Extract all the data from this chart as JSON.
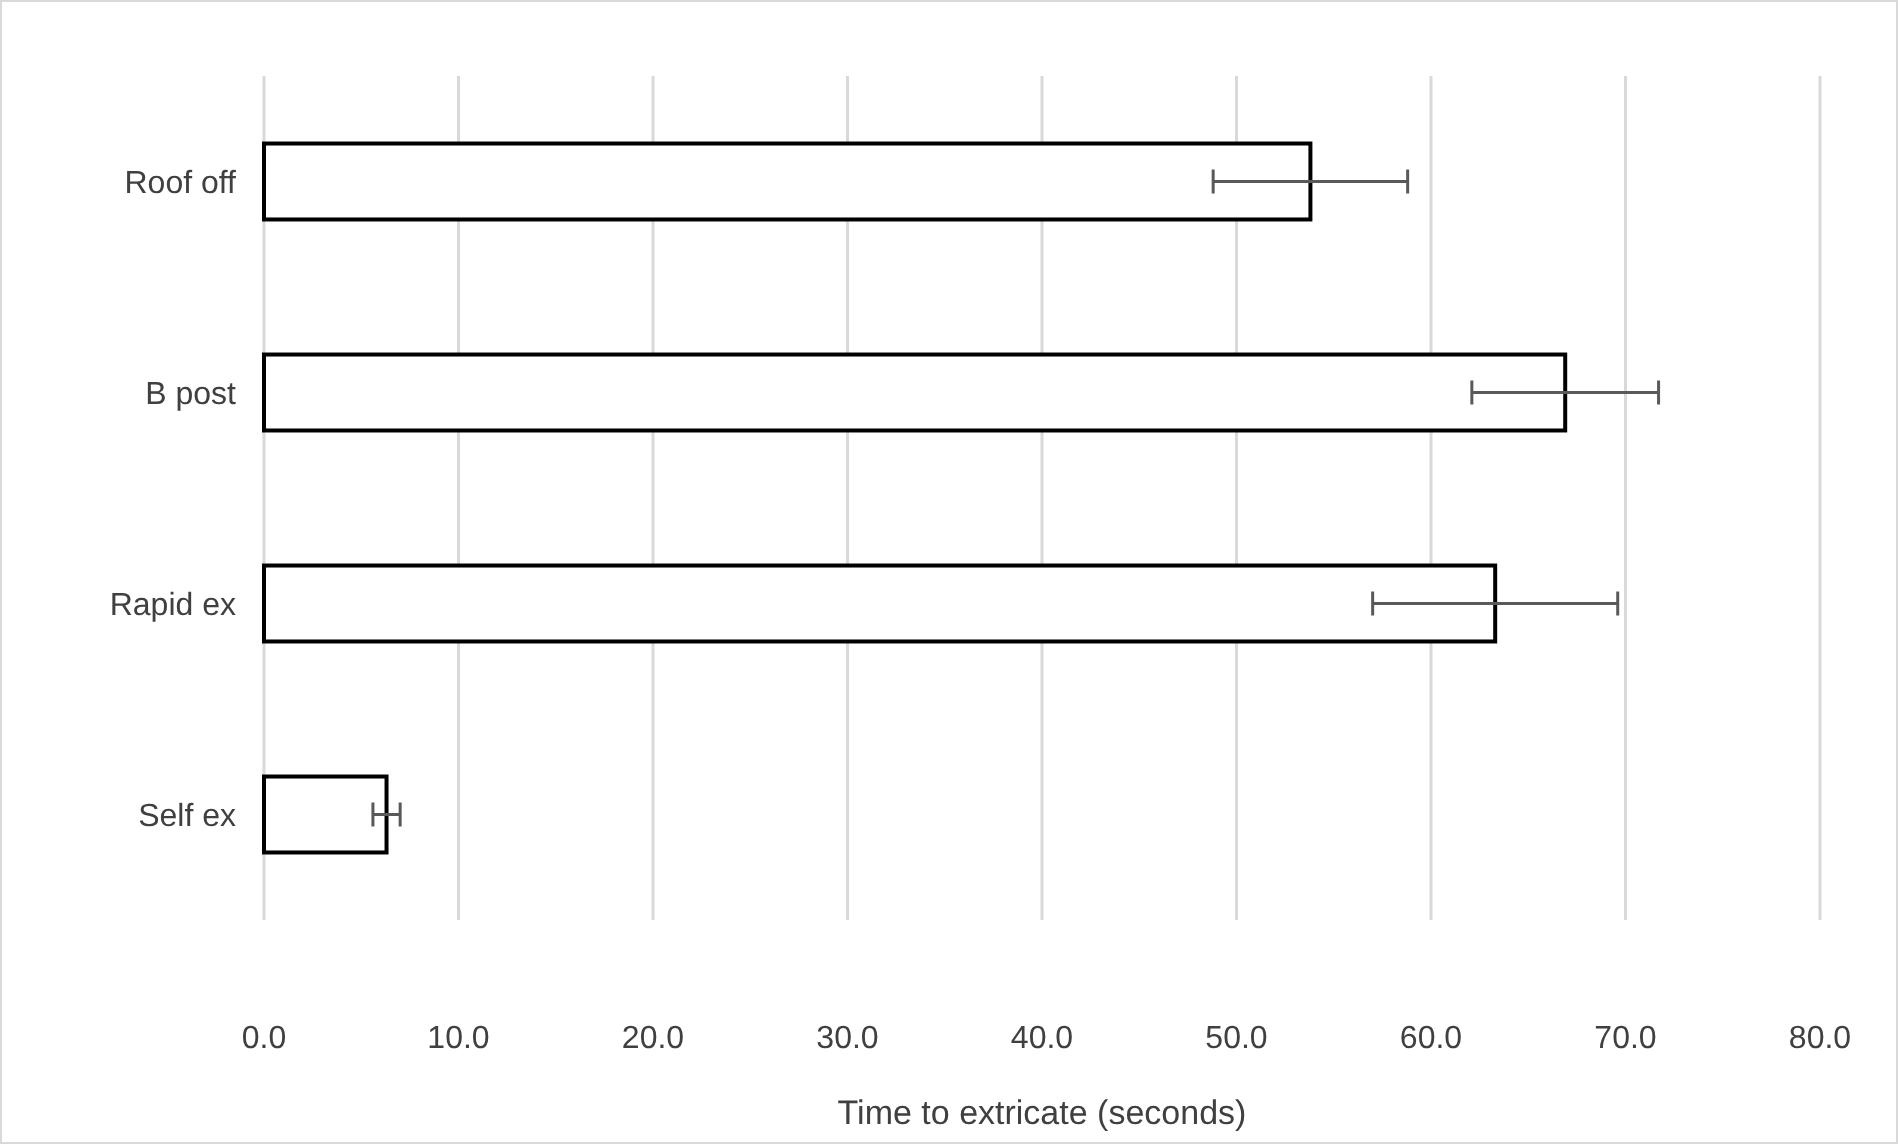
{
  "chart_data": {
    "type": "bar",
    "orientation": "horizontal",
    "xlabel": "Time to extricate (seconds)",
    "categories": [
      "Roof off",
      "B post",
      "Rapid ex",
      "Self ex"
    ],
    "values": [
      53.8,
      66.9,
      63.3,
      6.3
    ],
    "errors": [
      5.0,
      4.8,
      6.3,
      0.7
    ],
    "color": "#ffffff",
    "xlim": [
      0,
      80
    ],
    "xticks": [
      {
        "value": 0,
        "label": "0.0"
      },
      {
        "value": 10,
        "label": "10.0"
      },
      {
        "value": 20,
        "label": "20.0"
      },
      {
        "value": 30,
        "label": "30.0"
      },
      {
        "value": 40,
        "label": "40.0"
      },
      {
        "value": 50,
        "label": "50.0"
      },
      {
        "value": 60,
        "label": "60.0"
      },
      {
        "value": 70,
        "label": "70.0"
      },
      {
        "value": 80,
        "label": "80.0"
      }
    ],
    "grid": "x"
  }
}
